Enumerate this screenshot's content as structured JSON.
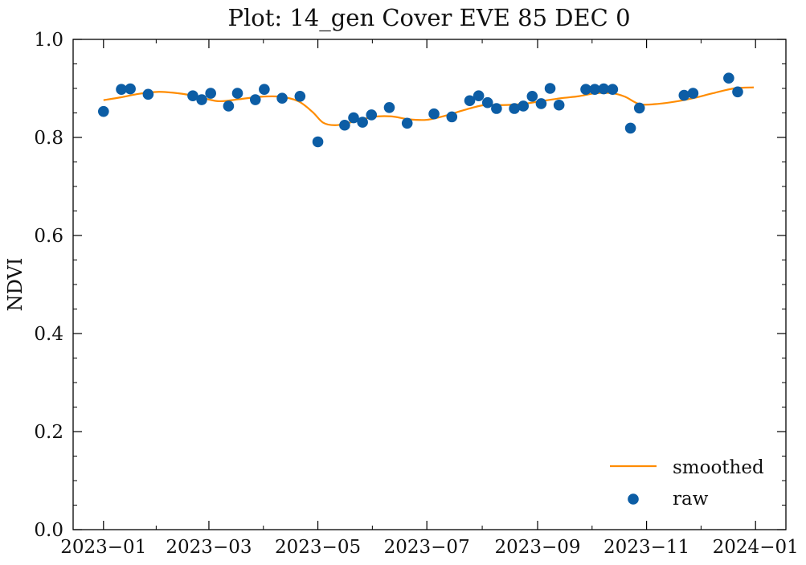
{
  "chart_data": {
    "type": "scatter",
    "title": "Plot: 14_gen Cover EVE 85 DEC 0",
    "xlabel": "",
    "ylabel": "NDVI",
    "xlim": [
      "2022-12-15",
      "2024-01-18"
    ],
    "ylim": [
      0.0,
      1.0
    ],
    "y_ticks": [
      0.0,
      0.2,
      0.4,
      0.6,
      0.8,
      1.0
    ],
    "y_tick_labels": [
      "0.0",
      "0.2",
      "0.4",
      "0.6",
      "0.8",
      "1.0"
    ],
    "x_ticks": [
      "2023-01-01",
      "2023-03-01",
      "2023-05-01",
      "2023-07-01",
      "2023-09-01",
      "2023-11-01",
      "2024-01-01"
    ],
    "x_tick_labels": [
      "2023−01",
      "2023−03",
      "2023−05",
      "2023−07",
      "2023−09",
      "2023−11",
      "2024−01"
    ],
    "grid": false,
    "legend_position": "bottom-right",
    "series": [
      {
        "name": "smoothed",
        "kind": "line",
        "color": "#ff8c00",
        "points": [
          [
            "2023-01-01",
            0.876
          ],
          [
            "2023-01-11",
            0.882
          ],
          [
            "2023-01-21",
            0.889
          ],
          [
            "2023-02-01",
            0.893
          ],
          [
            "2023-02-12",
            0.89
          ],
          [
            "2023-02-22",
            0.884
          ],
          [
            "2023-03-06",
            0.874
          ],
          [
            "2023-03-18",
            0.878
          ],
          [
            "2023-03-30",
            0.883
          ],
          [
            "2023-04-10",
            0.883
          ],
          [
            "2023-04-20",
            0.874
          ],
          [
            "2023-04-28",
            0.852
          ],
          [
            "2023-05-04",
            0.83
          ],
          [
            "2023-05-11",
            0.825
          ],
          [
            "2023-05-21",
            0.832
          ],
          [
            "2023-06-01",
            0.842
          ],
          [
            "2023-06-11",
            0.843
          ],
          [
            "2023-06-21",
            0.837
          ],
          [
            "2023-07-01",
            0.836
          ],
          [
            "2023-07-12",
            0.845
          ],
          [
            "2023-07-22",
            0.856
          ],
          [
            "2023-08-02",
            0.866
          ],
          [
            "2023-08-12",
            0.866
          ],
          [
            "2023-08-23",
            0.868
          ],
          [
            "2023-09-03",
            0.874
          ],
          [
            "2023-09-14",
            0.88
          ],
          [
            "2023-09-24",
            0.884
          ],
          [
            "2023-10-03",
            0.89
          ],
          [
            "2023-10-13",
            0.89
          ],
          [
            "2023-10-20",
            0.883
          ],
          [
            "2023-10-28",
            0.868
          ],
          [
            "2023-11-06",
            0.868
          ],
          [
            "2023-11-17",
            0.873
          ],
          [
            "2023-11-27",
            0.88
          ],
          [
            "2023-12-08",
            0.89
          ],
          [
            "2023-12-20",
            0.9
          ],
          [
            "2023-12-31",
            0.902
          ]
        ]
      },
      {
        "name": "raw",
        "kind": "scatter",
        "color": "#0c5da5",
        "points": [
          [
            "2023-01-01",
            0.853
          ],
          [
            "2023-01-11",
            0.898
          ],
          [
            "2023-01-16",
            0.899
          ],
          [
            "2023-01-26",
            0.888
          ],
          [
            "2023-02-20",
            0.885
          ],
          [
            "2023-02-25",
            0.877
          ],
          [
            "2023-03-02",
            0.89
          ],
          [
            "2023-03-12",
            0.864
          ],
          [
            "2023-03-17",
            0.89
          ],
          [
            "2023-03-27",
            0.877
          ],
          [
            "2023-04-01",
            0.898
          ],
          [
            "2023-04-11",
            0.88
          ],
          [
            "2023-04-21",
            0.884
          ],
          [
            "2023-05-01",
            0.791
          ],
          [
            "2023-05-16",
            0.825
          ],
          [
            "2023-05-21",
            0.84
          ],
          [
            "2023-05-26",
            0.831
          ],
          [
            "2023-05-31",
            0.846
          ],
          [
            "2023-06-10",
            0.861
          ],
          [
            "2023-06-20",
            0.829
          ],
          [
            "2023-07-05",
            0.848
          ],
          [
            "2023-07-15",
            0.842
          ],
          [
            "2023-07-25",
            0.875
          ],
          [
            "2023-07-30",
            0.885
          ],
          [
            "2023-08-04",
            0.871
          ],
          [
            "2023-08-09",
            0.859
          ],
          [
            "2023-08-19",
            0.859
          ],
          [
            "2023-08-24",
            0.864
          ],
          [
            "2023-08-29",
            0.884
          ],
          [
            "2023-09-03",
            0.869
          ],
          [
            "2023-09-08",
            0.9
          ],
          [
            "2023-09-13",
            0.866
          ],
          [
            "2023-09-28",
            0.898
          ],
          [
            "2023-10-03",
            0.898
          ],
          [
            "2023-10-08",
            0.899
          ],
          [
            "2023-10-13",
            0.898
          ],
          [
            "2023-10-23",
            0.819
          ],
          [
            "2023-10-28",
            0.86
          ],
          [
            "2023-11-22",
            0.886
          ],
          [
            "2023-11-27",
            0.89
          ],
          [
            "2023-12-17",
            0.921
          ],
          [
            "2023-12-22",
            0.893
          ]
        ]
      }
    ]
  }
}
